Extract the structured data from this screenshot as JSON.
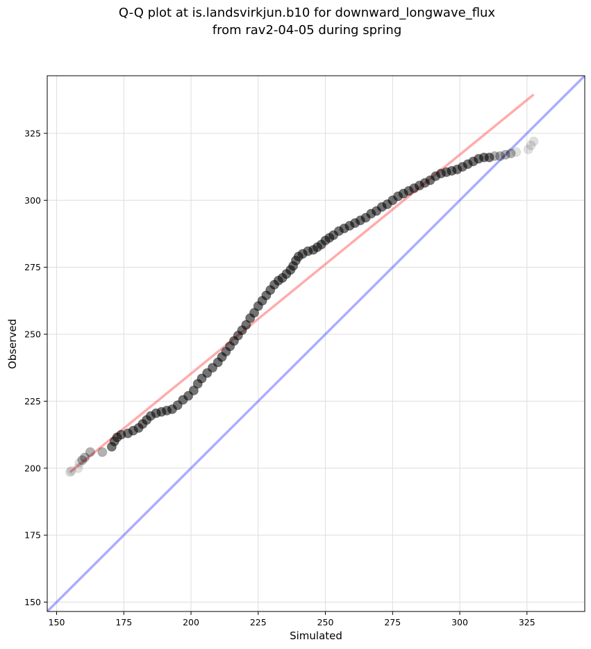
{
  "chart_data": {
    "type": "scatter",
    "title_line1": "Q-Q plot at is.landsvirkjun.b10 for downward_longwave_flux",
    "title_line2": "from rav2-04-05 during spring",
    "xlabel": "Simulated",
    "ylabel": "Observed",
    "xlim": [
      146.5,
      346.5
    ],
    "ylim": [
      146.5,
      346.5
    ],
    "xticks": [
      150,
      175,
      200,
      225,
      250,
      275,
      300,
      325
    ],
    "yticks": [
      150,
      175,
      200,
      225,
      250,
      275,
      300,
      325
    ],
    "grid": true,
    "quantiles_observed_vs_simulated": [
      [
        155.0,
        198.5
      ],
      [
        155.5,
        199.0
      ],
      [
        158.0,
        200.0
      ],
      [
        158.5,
        202.0
      ],
      [
        159.5,
        203.0
      ],
      [
        160.5,
        204.0
      ],
      [
        162.5,
        206.0
      ],
      [
        167.0,
        206.0
      ],
      [
        170.5,
        208.0
      ],
      [
        171.5,
        210.0
      ],
      [
        172.5,
        211.5
      ],
      [
        174.0,
        212.5
      ],
      [
        176.5,
        213.0
      ],
      [
        178.5,
        214.0
      ],
      [
        180.5,
        215.0
      ],
      [
        182.0,
        216.5
      ],
      [
        183.5,
        218.0
      ],
      [
        185.0,
        219.5
      ],
      [
        187.0,
        220.5
      ],
      [
        189.0,
        221.0
      ],
      [
        191.0,
        221.5
      ],
      [
        193.0,
        222.0
      ],
      [
        195.0,
        223.5
      ],
      [
        197.0,
        225.5
      ],
      [
        199.0,
        227.0
      ],
      [
        201.0,
        229.0
      ],
      [
        202.5,
        231.5
      ],
      [
        204.0,
        233.5
      ],
      [
        206.0,
        235.5
      ],
      [
        208.0,
        237.5
      ],
      [
        210.0,
        239.5
      ],
      [
        211.5,
        241.5
      ],
      [
        213.0,
        243.5
      ],
      [
        214.5,
        245.5
      ],
      [
        216.0,
        247.5
      ],
      [
        217.5,
        249.5
      ],
      [
        219.0,
        251.5
      ],
      [
        220.5,
        253.5
      ],
      [
        222.0,
        256.0
      ],
      [
        223.5,
        258.0
      ],
      [
        225.0,
        260.5
      ],
      [
        226.5,
        262.5
      ],
      [
        228.0,
        264.5
      ],
      [
        229.5,
        266.5
      ],
      [
        231.0,
        268.5
      ],
      [
        232.5,
        270.0
      ],
      [
        234.0,
        271.0
      ],
      [
        235.5,
        272.5
      ],
      [
        237.0,
        274.0
      ],
      [
        238.0,
        275.5
      ],
      [
        239.0,
        277.5
      ],
      [
        240.0,
        279.0
      ],
      [
        241.5,
        280.0
      ],
      [
        243.5,
        281.0
      ],
      [
        245.5,
        281.5
      ],
      [
        247.0,
        282.5
      ],
      [
        248.5,
        283.5
      ],
      [
        250.0,
        285.0
      ],
      [
        251.5,
        286.0
      ],
      [
        253.0,
        287.0
      ],
      [
        255.0,
        288.5
      ],
      [
        257.0,
        289.5
      ],
      [
        259.0,
        290.5
      ],
      [
        261.0,
        291.5
      ],
      [
        263.0,
        292.5
      ],
      [
        265.0,
        293.5
      ],
      [
        267.0,
        295.0
      ],
      [
        269.0,
        296.0
      ],
      [
        271.0,
        297.5
      ],
      [
        273.0,
        298.5
      ],
      [
        275.0,
        300.0
      ],
      [
        277.0,
        301.5
      ],
      [
        279.0,
        302.5
      ],
      [
        281.0,
        303.5
      ],
      [
        283.0,
        304.5
      ],
      [
        285.0,
        305.5
      ],
      [
        287.0,
        306.5
      ],
      [
        289.0,
        307.5
      ],
      [
        291.0,
        309.0
      ],
      [
        293.0,
        310.0
      ],
      [
        295.0,
        310.5
      ],
      [
        297.0,
        311.0
      ],
      [
        299.0,
        311.5
      ],
      [
        301.0,
        312.5
      ],
      [
        303.0,
        313.5
      ],
      [
        305.0,
        314.5
      ],
      [
        307.0,
        315.5
      ],
      [
        309.0,
        316.0
      ],
      [
        311.0,
        316.0
      ],
      [
        313.0,
        316.5
      ],
      [
        315.0,
        316.5
      ],
      [
        317.0,
        317.0
      ],
      [
        319.0,
        317.5
      ],
      [
        321.0,
        318.0
      ],
      [
        325.5,
        319.0
      ],
      [
        326.5,
        320.5
      ],
      [
        327.5,
        322.0
      ]
    ],
    "fit_line": {
      "x": [
        155.0,
        327.5
      ],
      "y": [
        198.5,
        339.5
      ]
    },
    "identity_line": {
      "x": [
        146.5,
        346.5
      ],
      "y": [
        146.5,
        346.5
      ]
    },
    "colors": {
      "points": "#000000",
      "fit_line": "#ff5a5a",
      "identity_line": "#5a5aff",
      "grid": "#dddddd",
      "axes": "#000000"
    }
  }
}
